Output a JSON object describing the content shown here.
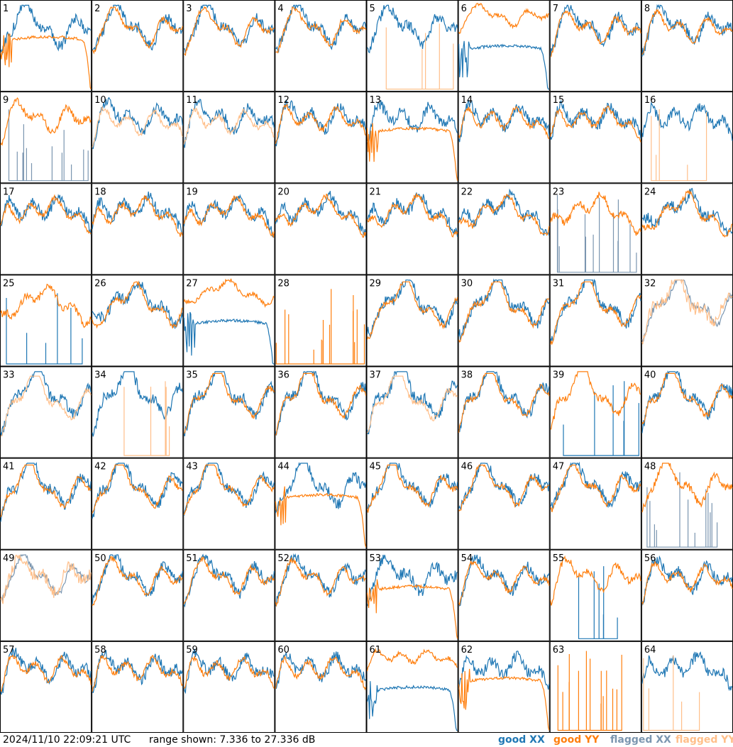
{
  "chart_data": {
    "type": "line",
    "title": "",
    "panel_count": 64,
    "grid": {
      "rows": 8,
      "cols": 8
    },
    "panels": [
      "1",
      "2",
      "3",
      "4",
      "5",
      "6",
      "7",
      "8",
      "9",
      "10",
      "11",
      "12",
      "13",
      "14",
      "15",
      "16",
      "17",
      "18",
      "19",
      "20",
      "21",
      "22",
      "23",
      "24",
      "25",
      "26",
      "27",
      "28",
      "29",
      "30",
      "31",
      "32",
      "33",
      "34",
      "35",
      "36",
      "37",
      "38",
      "39",
      "40",
      "41",
      "42",
      "43",
      "44",
      "45",
      "46",
      "47",
      "48",
      "49",
      "50",
      "51",
      "52",
      "53",
      "54",
      "55",
      "56",
      "57",
      "58",
      "59",
      "60",
      "61",
      "62",
      "63",
      "64"
    ],
    "series": [
      {
        "name": "good XX",
        "color": "#1f77b4"
      },
      {
        "name": "good YY",
        "color": "#ff7f0e"
      },
      {
        "name": "flagged XX",
        "color": "#7b96b0"
      },
      {
        "name": "flagged YY",
        "color": "#ffbf8a"
      }
    ],
    "ylim_db": [
      7.336,
      27.336
    ],
    "grid_lines": false
  },
  "footer": {
    "timestamp": "2024/11/10 22:09:21 UTC",
    "range_text": "range shown: 7.336 to 27.336 dB",
    "legend": {
      "good_xx": "good XX",
      "good_yy": "good YY",
      "flagged_xx": "flagged XX",
      "flagged_yy": "flagged YY"
    }
  }
}
